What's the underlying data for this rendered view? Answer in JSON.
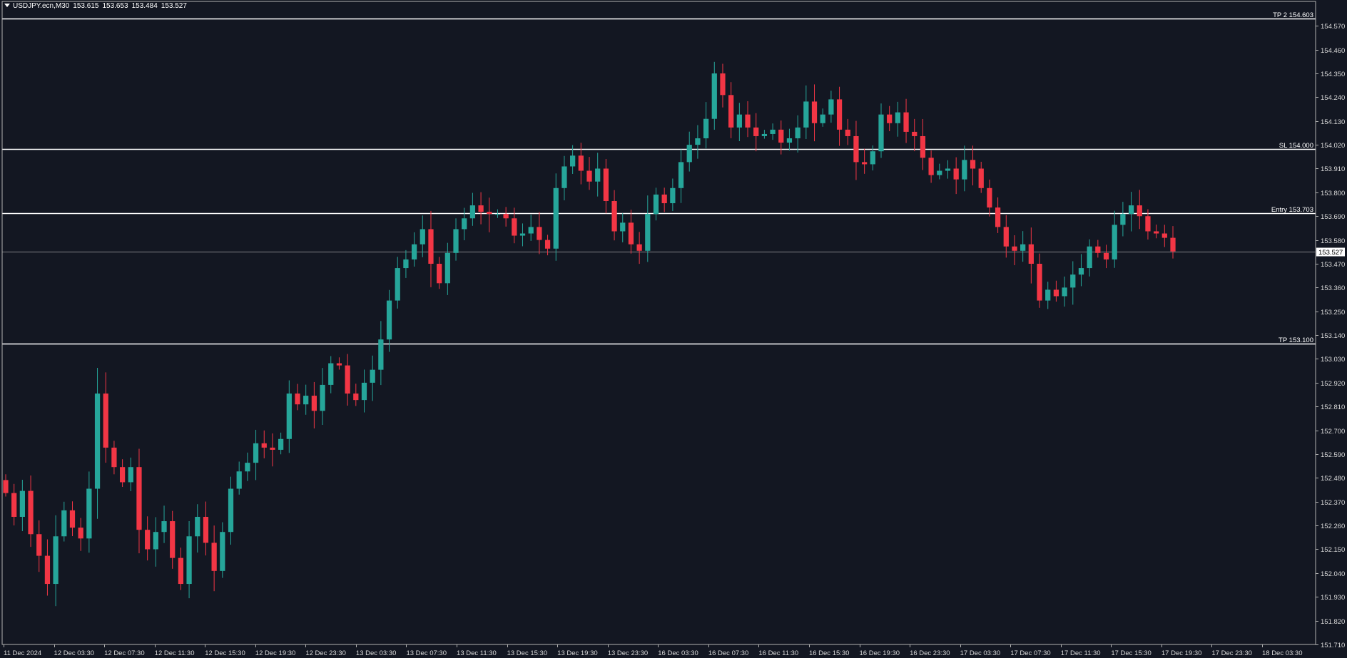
{
  "window": {
    "symbol": "USDJPY.ecn,M30",
    "open": "153.615",
    "high": "153.653",
    "low": "153.484",
    "close": "153.527"
  },
  "colors": {
    "background": "#131722",
    "bull": "#26a69a",
    "bear": "#f23645",
    "level_line": "#ffffff",
    "axis_text": "#d9d9d9",
    "frame": "#b0b0b0"
  },
  "chart_data": {
    "type": "candlestick",
    "timeframe": "M30",
    "ylim": [
      151.71,
      154.64
    ],
    "price_ticks": [
      "154.570",
      "154.460",
      "154.350",
      "154.240",
      "154.130",
      "154.020",
      "153.910",
      "153.800",
      "153.690",
      "153.580",
      "153.470",
      "153.360",
      "153.250",
      "153.140",
      "153.030",
      "152.920",
      "152.810",
      "152.700",
      "152.590",
      "152.480",
      "152.370",
      "152.260",
      "152.150",
      "152.040",
      "151.930",
      "151.820",
      "151.710"
    ],
    "time_labels": [
      "11 Dec 2024",
      "12 Dec 03:30",
      "12 Dec 07:30",
      "12 Dec 11:30",
      "12 Dec 15:30",
      "12 Dec 19:30",
      "12 Dec 23:30",
      "13 Dec 03:30",
      "13 Dec 07:30",
      "13 Dec 11:30",
      "13 Dec 15:30",
      "13 Dec 19:30",
      "13 Dec 23:30",
      "16 Dec 03:30",
      "16 Dec 07:30",
      "16 Dec 11:30",
      "16 Dec 15:30",
      "16 Dec 19:30",
      "16 Dec 23:30",
      "17 Dec 03:30",
      "17 Dec 07:30",
      "17 Dec 11:30",
      "17 Dec 15:30",
      "17 Dec 19:30",
      "17 Dec 23:30",
      "18 Dec 03:30"
    ],
    "levels": [
      {
        "label": "TP 2 154.603",
        "price": 154.603
      },
      {
        "label": "SL 154.000",
        "price": 154.0
      },
      {
        "label": "Entry 153.703",
        "price": 153.703
      },
      {
        "label": "TP 153.100",
        "price": 153.1
      }
    ],
    "current_price": {
      "label": "153.527",
      "price": 153.527
    },
    "closes": [
      152.41,
      152.3,
      152.42,
      152.22,
      152.12,
      151.99,
      152.21,
      152.33,
      152.25,
      152.2,
      152.43,
      152.87,
      152.62,
      152.53,
      152.46,
      152.53,
      152.24,
      152.15,
      152.23,
      152.28,
      152.11,
      151.99,
      152.21,
      152.3,
      152.18,
      152.05,
      152.23,
      152.43,
      152.51,
      152.55,
      152.64,
      152.62,
      152.61,
      152.66,
      152.87,
      152.82,
      152.86,
      152.79,
      152.91,
      153.01,
      153.0,
      152.87,
      152.84,
      152.92,
      152.98,
      153.12,
      153.3,
      153.45,
      153.49,
      153.56,
      153.63,
      153.47,
      153.38,
      153.52,
      153.63,
      153.68,
      153.74,
      153.71,
      153.7,
      153.7,
      153.68,
      153.6,
      153.61,
      153.64,
      153.58,
      153.54,
      153.82,
      153.92,
      153.97,
      153.9,
      153.85,
      153.91,
      153.76,
      153.62,
      153.66,
      153.56,
      153.53,
      153.7,
      153.79,
      153.75,
      153.82,
      153.94,
      154.02,
      154.05,
      154.14,
      154.35,
      154.25,
      154.1,
      154.16,
      154.1,
      154.06,
      154.07,
      154.09,
      154.03,
      154.05,
      154.1,
      154.22,
      154.12,
      154.16,
      154.23,
      154.09,
      154.06,
      153.94,
      153.93,
      153.99,
      154.16,
      154.12,
      154.17,
      154.08,
      154.06,
      153.96,
      153.88,
      153.9,
      153.91,
      153.86,
      153.95,
      153.91,
      153.82,
      153.73,
      153.64,
      153.55,
      153.53,
      153.56,
      153.47,
      153.3,
      153.35,
      153.32,
      153.36,
      153.42,
      153.45,
      153.55,
      153.52,
      153.49,
      153.65,
      153.7,
      153.74,
      153.69,
      153.62,
      153.61,
      153.59,
      153.527
    ]
  }
}
